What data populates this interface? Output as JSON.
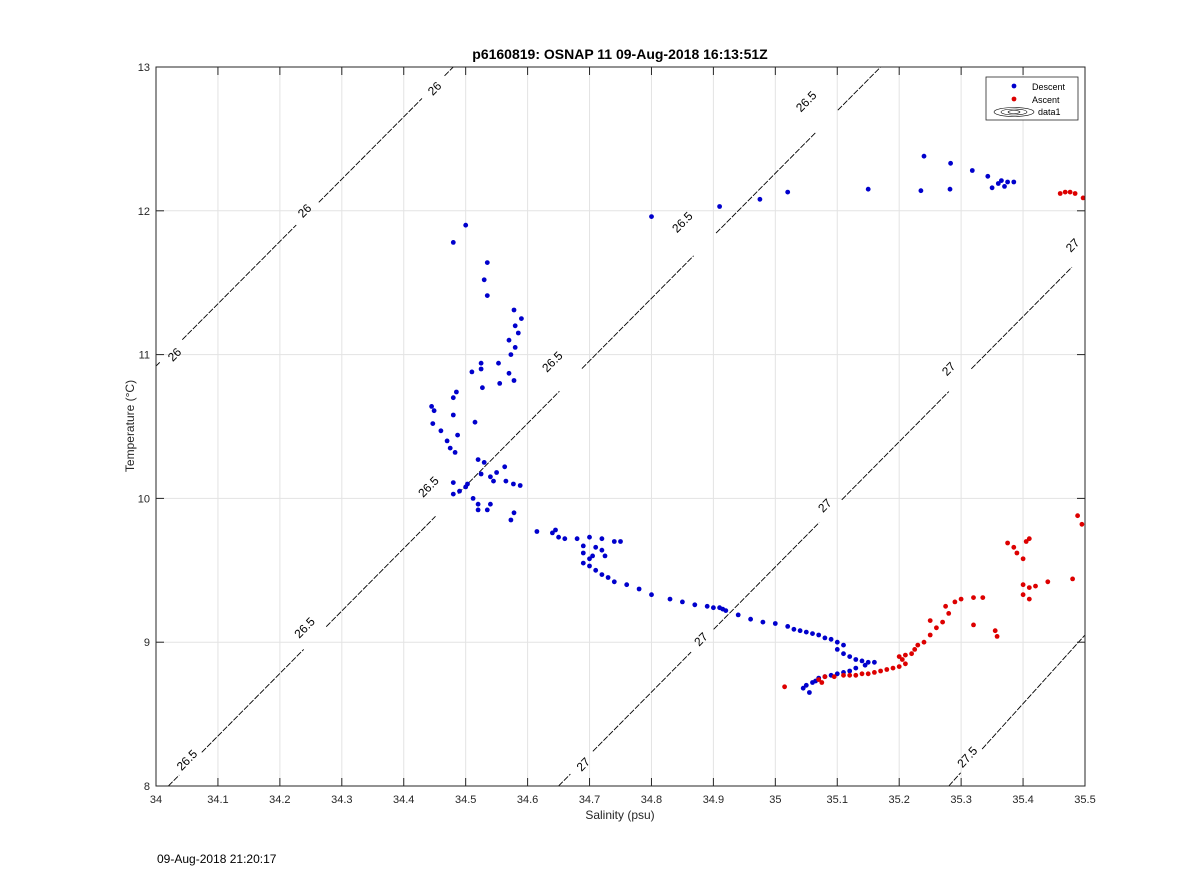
{
  "footer": {
    "timestamp": "09-Aug-2018 21:20:17"
  },
  "chart_data": {
    "type": "scatter",
    "title": "p6160819: OSNAP 11 09-Aug-2018 16:13:51Z",
    "xlabel": "Salinity (psu)",
    "ylabel": "Temperature (°C)",
    "xlim": [
      34,
      35.5
    ],
    "ylim": [
      8,
      13
    ],
    "grid": true,
    "legend_placement": "top-right",
    "xticks": [
      34,
      34.1,
      34.2,
      34.3,
      34.4,
      34.5,
      34.6,
      34.7,
      34.8,
      34.9,
      35,
      35.1,
      35.2,
      35.3,
      35.4,
      35.5
    ],
    "xtick_labels": [
      "34",
      "34.1",
      "34.2",
      "34.3",
      "34.4",
      "34.5",
      "34.6",
      "34.7",
      "34.8",
      "34.9",
      "35",
      "35.1",
      "35.2",
      "35.3",
      "35.4",
      "35.5"
    ],
    "yticks": [
      8,
      9,
      10,
      11,
      12,
      13
    ],
    "ytick_labels": [
      "8",
      "9",
      "10",
      "11",
      "12",
      "13"
    ],
    "legend": [
      {
        "label": "Descent",
        "color": "#0000cc",
        "marker": "dot"
      },
      {
        "label": "Ascent",
        "color": "#dd0000",
        "marker": "dot"
      },
      {
        "label": "data1",
        "color": "#000000",
        "marker": "contour"
      }
    ],
    "contours": [
      {
        "level": "26",
        "points": [
          [
            34,
            10.92
          ],
          [
            34.48,
            13
          ]
        ],
        "labels": [
          [
            34.03,
            11.0
          ],
          [
            34.24,
            12.0
          ],
          [
            34.45,
            12.85
          ]
        ]
      },
      {
        "level": "26.5",
        "points": [
          [
            34.02,
            8
          ],
          [
            35.17,
            13
          ]
        ],
        "labels": [
          [
            34.05,
            8.18
          ],
          [
            34.24,
            9.1
          ],
          [
            34.44,
            10.08
          ],
          [
            34.64,
            10.95
          ],
          [
            34.85,
            11.92
          ],
          [
            35.05,
            12.76
          ]
        ]
      },
      {
        "level": "27",
        "points": [
          [
            34.65,
            8
          ],
          [
            35.5,
            11.7
          ]
        ],
        "labels": [
          [
            34.69,
            8.15
          ],
          [
            34.88,
            9.02
          ],
          [
            35.08,
            9.95
          ],
          [
            35.28,
            10.9
          ],
          [
            35.48,
            11.76
          ]
        ]
      },
      {
        "level": "27.5",
        "points": [
          [
            35.28,
            8
          ],
          [
            35.5,
            9.05
          ]
        ],
        "labels": [
          [
            35.31,
            8.2
          ]
        ]
      }
    ],
    "series": [
      {
        "name": "Descent",
        "color": "#0000cc",
        "points": [
          [
            34.48,
            11.78
          ],
          [
            34.5,
            11.9
          ],
          [
            34.535,
            11.64
          ],
          [
            34.53,
            11.52
          ],
          [
            34.535,
            11.41
          ],
          [
            34.578,
            11.31
          ],
          [
            34.58,
            11.2
          ],
          [
            34.59,
            11.25
          ],
          [
            34.585,
            11.15
          ],
          [
            34.57,
            11.1
          ],
          [
            34.58,
            11.05
          ],
          [
            34.573,
            11.0
          ],
          [
            34.525,
            10.94
          ],
          [
            34.553,
            10.94
          ],
          [
            34.525,
            10.9
          ],
          [
            34.57,
            10.87
          ],
          [
            34.51,
            10.88
          ],
          [
            34.555,
            10.8
          ],
          [
            34.578,
            10.82
          ],
          [
            34.527,
            10.77
          ],
          [
            34.485,
            10.74
          ],
          [
            34.48,
            10.7
          ],
          [
            34.445,
            10.64
          ],
          [
            34.449,
            10.61
          ],
          [
            34.48,
            10.58
          ],
          [
            34.515,
            10.53
          ],
          [
            34.447,
            10.52
          ],
          [
            34.46,
            10.47
          ],
          [
            34.487,
            10.44
          ],
          [
            34.47,
            10.4
          ],
          [
            34.475,
            10.35
          ],
          [
            34.483,
            10.32
          ],
          [
            34.52,
            10.27
          ],
          [
            34.53,
            10.25
          ],
          [
            34.563,
            10.22
          ],
          [
            34.55,
            10.18
          ],
          [
            34.54,
            10.15
          ],
          [
            34.525,
            10.17
          ],
          [
            34.545,
            10.12
          ],
          [
            34.565,
            10.12
          ],
          [
            34.577,
            10.1
          ],
          [
            34.588,
            10.09
          ],
          [
            34.48,
            10.11
          ],
          [
            34.5,
            10.08
          ],
          [
            34.49,
            10.05
          ],
          [
            34.503,
            10.1
          ],
          [
            34.48,
            10.03
          ],
          [
            34.512,
            10.0
          ],
          [
            34.52,
            9.96
          ],
          [
            34.54,
            9.96
          ],
          [
            34.52,
            9.92
          ],
          [
            34.535,
            9.92
          ],
          [
            34.578,
            9.9
          ],
          [
            34.573,
            9.85
          ],
          [
            34.615,
            9.77
          ],
          [
            34.64,
            9.76
          ],
          [
            34.645,
            9.78
          ],
          [
            34.65,
            9.73
          ],
          [
            34.66,
            9.72
          ],
          [
            34.68,
            9.72
          ],
          [
            34.7,
            9.73
          ],
          [
            34.72,
            9.72
          ],
          [
            34.74,
            9.7
          ],
          [
            34.75,
            9.7
          ],
          [
            34.69,
            9.67
          ],
          [
            34.71,
            9.66
          ],
          [
            34.72,
            9.64
          ],
          [
            34.69,
            9.62
          ],
          [
            34.705,
            9.6
          ],
          [
            34.725,
            9.6
          ],
          [
            34.7,
            9.58
          ],
          [
            34.69,
            9.55
          ],
          [
            34.7,
            9.53
          ],
          [
            34.71,
            9.5
          ],
          [
            34.72,
            9.47
          ],
          [
            34.73,
            9.45
          ],
          [
            34.74,
            9.42
          ],
          [
            34.76,
            9.4
          ],
          [
            34.78,
            9.37
          ],
          [
            34.8,
            9.33
          ],
          [
            34.83,
            9.3
          ],
          [
            34.85,
            9.28
          ],
          [
            34.87,
            9.26
          ],
          [
            34.89,
            9.25
          ],
          [
            34.9,
            9.24
          ],
          [
            34.91,
            9.24
          ],
          [
            34.915,
            9.23
          ],
          [
            34.92,
            9.22
          ],
          [
            34.94,
            9.19
          ],
          [
            34.96,
            9.16
          ],
          [
            34.98,
            9.14
          ],
          [
            35.0,
            9.13
          ],
          [
            35.02,
            9.11
          ],
          [
            35.03,
            9.09
          ],
          [
            35.04,
            9.08
          ],
          [
            35.05,
            9.07
          ],
          [
            35.06,
            9.06
          ],
          [
            35.07,
            9.05
          ],
          [
            35.08,
            9.03
          ],
          [
            35.09,
            9.02
          ],
          [
            35.1,
            9.0
          ],
          [
            35.11,
            8.98
          ],
          [
            35.1,
            8.95
          ],
          [
            35.11,
            8.92
          ],
          [
            35.12,
            8.9
          ],
          [
            35.13,
            8.88
          ],
          [
            35.14,
            8.87
          ],
          [
            35.15,
            8.86
          ],
          [
            35.16,
            8.86
          ],
          [
            35.145,
            8.84
          ],
          [
            35.13,
            8.82
          ],
          [
            35.12,
            8.8
          ],
          [
            35.11,
            8.79
          ],
          [
            35.1,
            8.78
          ],
          [
            35.09,
            8.77
          ],
          [
            35.08,
            8.76
          ],
          [
            35.07,
            8.75
          ],
          [
            35.065,
            8.73
          ],
          [
            35.06,
            8.72
          ],
          [
            35.05,
            8.7
          ],
          [
            35.045,
            8.68
          ],
          [
            35.055,
            8.65
          ],
          [
            34.8,
            11.96
          ],
          [
            34.91,
            12.03
          ],
          [
            34.975,
            12.08
          ],
          [
            35.02,
            12.13
          ],
          [
            35.15,
            12.15
          ],
          [
            35.235,
            12.14
          ],
          [
            35.24,
            12.38
          ],
          [
            35.283,
            12.33
          ],
          [
            35.282,
            12.15
          ],
          [
            35.318,
            12.28
          ],
          [
            35.343,
            12.24
          ],
          [
            35.35,
            12.16
          ],
          [
            35.36,
            12.19
          ],
          [
            35.365,
            12.21
          ],
          [
            35.37,
            12.17
          ],
          [
            35.375,
            12.2
          ],
          [
            35.385,
            12.2
          ]
        ]
      },
      {
        "name": "Ascent",
        "color": "#dd0000",
        "points": [
          [
            35.015,
            8.69
          ],
          [
            35.07,
            8.74
          ],
          [
            35.075,
            8.72
          ],
          [
            35.08,
            8.76
          ],
          [
            35.095,
            8.76
          ],
          [
            35.11,
            8.77
          ],
          [
            35.12,
            8.77
          ],
          [
            35.13,
            8.77
          ],
          [
            35.14,
            8.78
          ],
          [
            35.15,
            8.78
          ],
          [
            35.16,
            8.79
          ],
          [
            35.17,
            8.8
          ],
          [
            35.18,
            8.81
          ],
          [
            35.19,
            8.82
          ],
          [
            35.2,
            8.83
          ],
          [
            35.21,
            8.85
          ],
          [
            35.205,
            8.88
          ],
          [
            35.2,
            8.9
          ],
          [
            35.21,
            8.91
          ],
          [
            35.22,
            8.92
          ],
          [
            35.225,
            8.95
          ],
          [
            35.23,
            8.98
          ],
          [
            35.24,
            9.0
          ],
          [
            35.25,
            9.05
          ],
          [
            35.26,
            9.1
          ],
          [
            35.25,
            9.15
          ],
          [
            35.27,
            9.14
          ],
          [
            35.28,
            9.2
          ],
          [
            35.275,
            9.25
          ],
          [
            35.29,
            9.28
          ],
          [
            35.3,
            9.3
          ],
          [
            35.32,
            9.31
          ],
          [
            35.335,
            9.31
          ],
          [
            35.32,
            9.12
          ],
          [
            35.355,
            9.08
          ],
          [
            35.358,
            9.04
          ],
          [
            35.375,
            9.69
          ],
          [
            35.385,
            9.66
          ],
          [
            35.39,
            9.62
          ],
          [
            35.4,
            9.58
          ],
          [
            35.41,
            9.72
          ],
          [
            35.405,
            9.7
          ],
          [
            35.4,
            9.4
          ],
          [
            35.41,
            9.38
          ],
          [
            35.42,
            9.39
          ],
          [
            35.4,
            9.33
          ],
          [
            35.41,
            9.3
          ],
          [
            35.44,
            9.42
          ],
          [
            35.48,
            9.44
          ],
          [
            35.488,
            9.88
          ],
          [
            35.495,
            9.82
          ],
          [
            35.46,
            12.12
          ],
          [
            35.468,
            12.13
          ],
          [
            35.476,
            12.13
          ],
          [
            35.484,
            12.12
          ],
          [
            35.497,
            12.09
          ]
        ]
      }
    ]
  }
}
